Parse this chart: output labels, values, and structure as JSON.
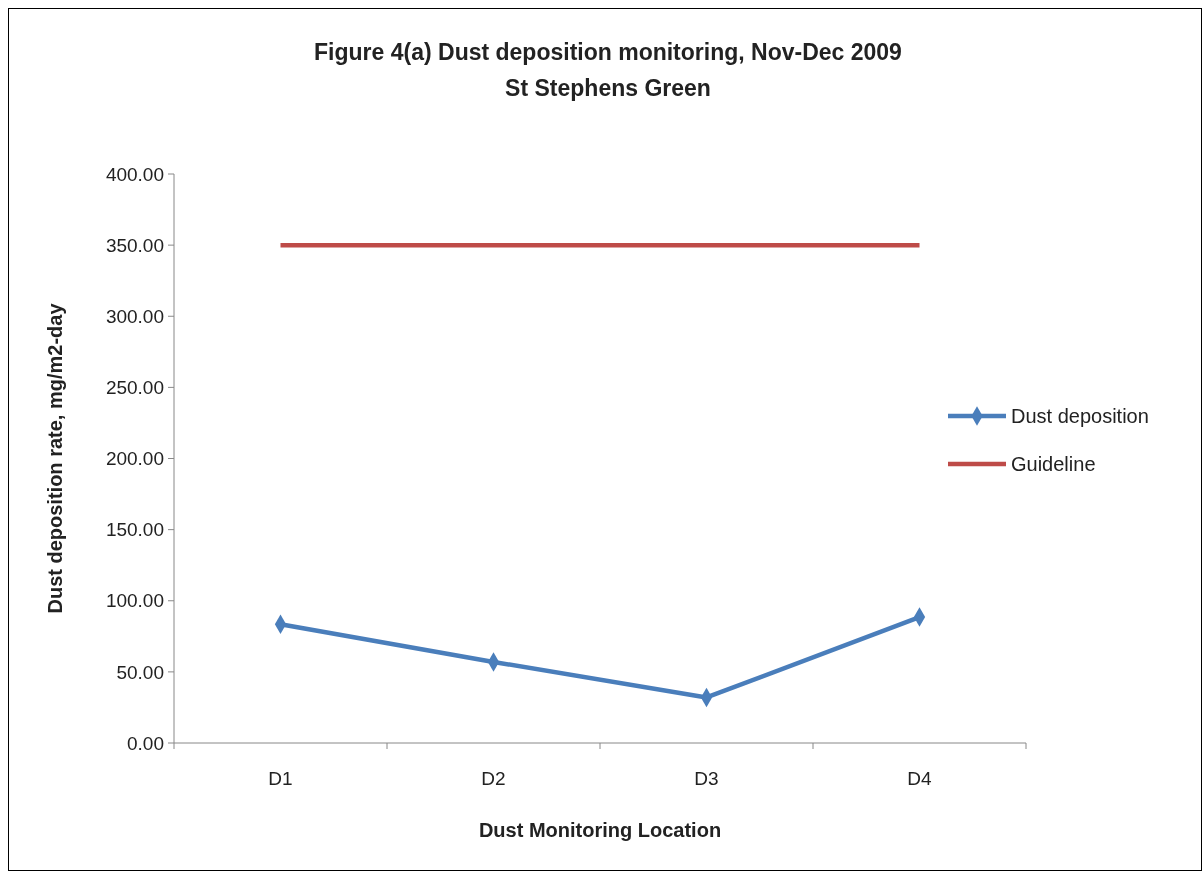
{
  "chart_data": {
    "type": "line",
    "title": "Figure 4(a)  Dust deposition monitoring, Nov-Dec 2009\nSt Stephens Green",
    "xlabel": "Dust Monitoring Location",
    "ylabel": "Dust deposition rate, mg/m2-day",
    "categories": [
      "D1",
      "D2",
      "D3",
      "D4"
    ],
    "series": [
      {
        "name": "Dust deposition",
        "color": "#4a7ebb",
        "values": [
          83.5,
          57,
          32,
          88.5
        ],
        "marker": "diamond"
      },
      {
        "name": "Guideline",
        "color": "#be4b48",
        "values": [
          350,
          350,
          350,
          350
        ],
        "marker": "none"
      }
    ],
    "ylim": [
      0,
      400
    ],
    "yticks": [
      {
        "value": 0,
        "label": "0.00"
      },
      {
        "value": 50,
        "label": "50.00"
      },
      {
        "value": 100,
        "label": "100.00"
      },
      {
        "value": 150,
        "label": "150.00"
      },
      {
        "value": 200,
        "label": "200.00"
      },
      {
        "value": 250,
        "label": "250.00"
      },
      {
        "value": 300,
        "label": "300.00"
      },
      {
        "value": 350,
        "label": "350.00"
      },
      {
        "value": 400,
        "label": "400.00"
      }
    ],
    "grid": false,
    "legend": "right"
  }
}
